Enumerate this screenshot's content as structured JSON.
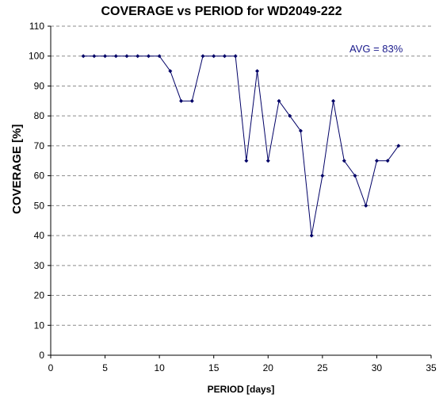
{
  "chart_data": {
    "type": "line",
    "title": "COVERAGE vs PERIOD for WD2049-222",
    "xlabel": "PERIOD [days]",
    "ylabel": "COVERAGE [%]",
    "annotation": "AVG = 83%",
    "xlim": [
      0,
      35
    ],
    "ylim": [
      0,
      110
    ],
    "xticks": [
      0,
      5,
      10,
      15,
      20,
      25,
      30,
      35
    ],
    "yticks": [
      0,
      10,
      20,
      30,
      40,
      50,
      60,
      70,
      80,
      90,
      100,
      110
    ],
    "grid": "horizontal dashed",
    "legend": "none",
    "line_color": "#000066",
    "series": [
      {
        "x": [
          3,
          4,
          5,
          6,
          7,
          8,
          9,
          10,
          11,
          12,
          13,
          14,
          15,
          16,
          17,
          18,
          19,
          20,
          21,
          22,
          23,
          24,
          25,
          26,
          27,
          28,
          29,
          30,
          31,
          32
        ],
        "y": [
          100,
          100,
          100,
          100,
          100,
          100,
          100,
          100,
          95,
          85,
          85,
          100,
          100,
          100,
          100,
          65,
          95,
          65,
          85,
          80,
          75,
          40,
          60,
          85,
          65,
          60,
          50,
          65,
          65,
          70
        ]
      }
    ]
  }
}
